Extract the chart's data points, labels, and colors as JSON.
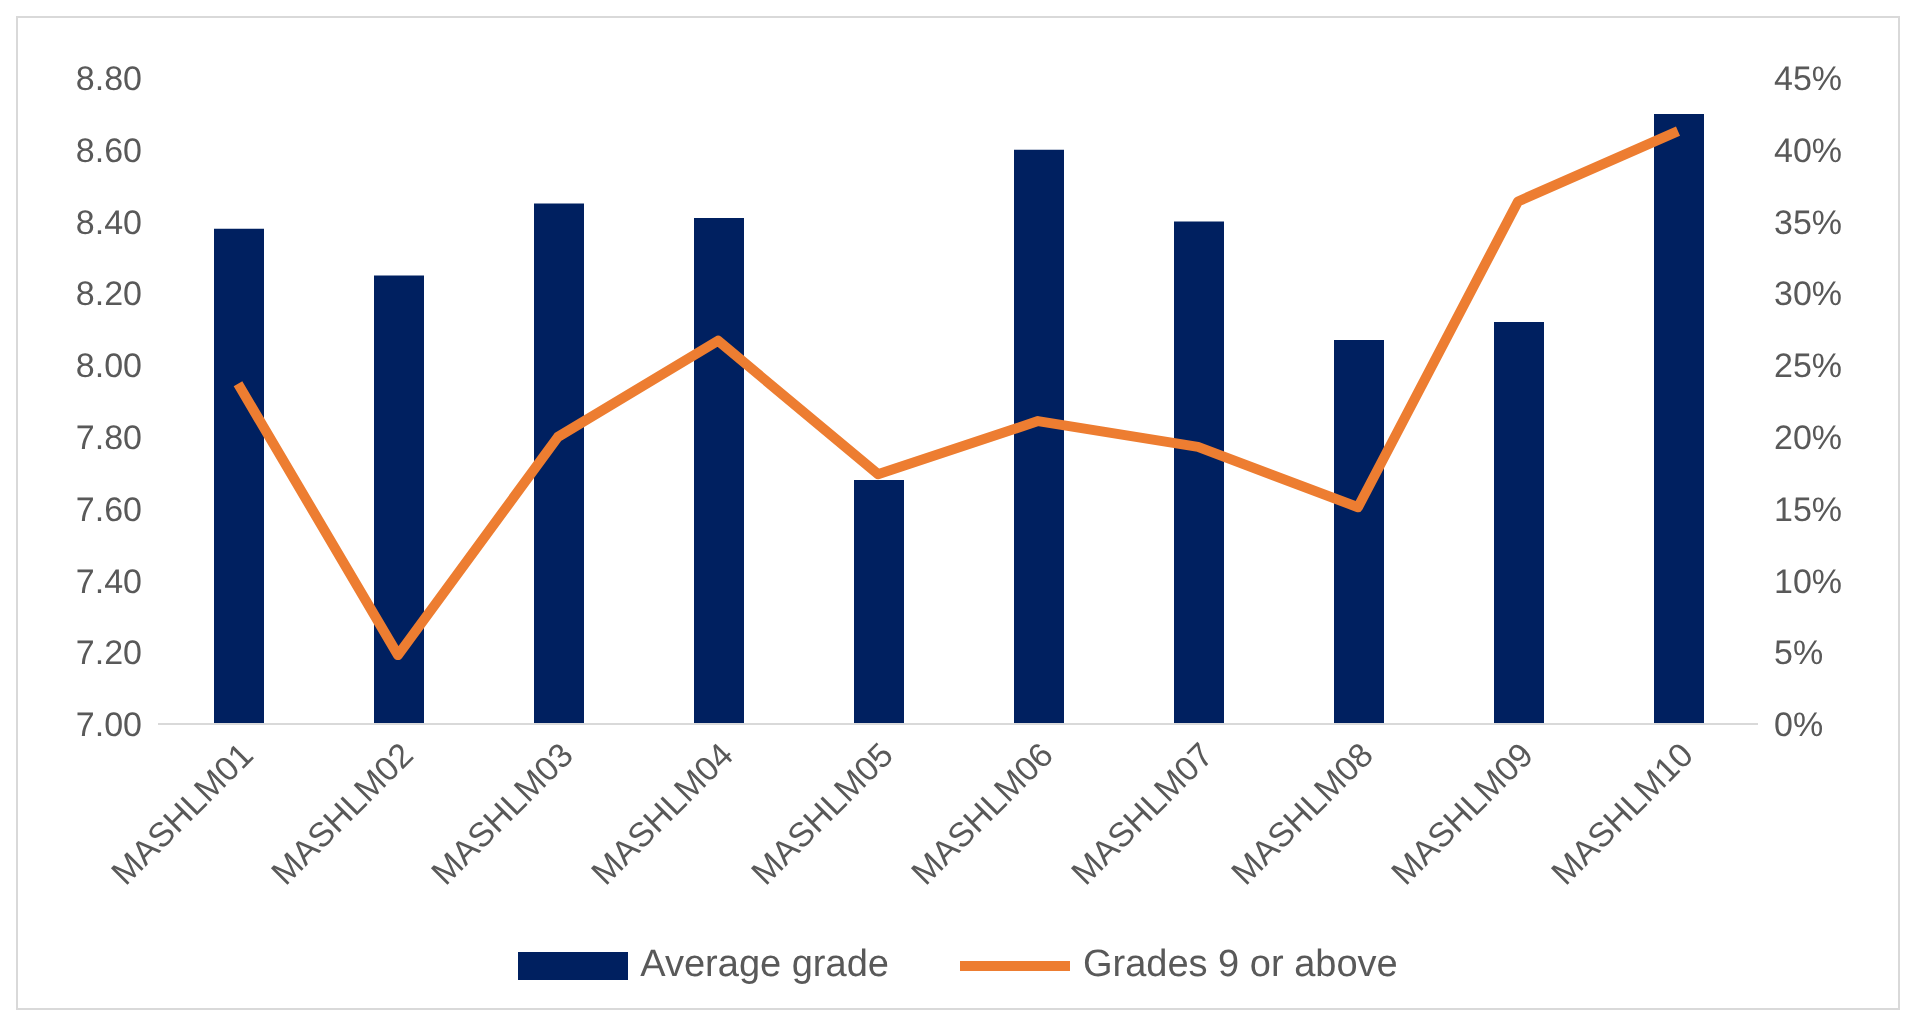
{
  "chart_data": {
    "type": "bar",
    "categories": [
      "MASHLM01",
      "MASHLM02",
      "MASHLM03",
      "MASHLM04",
      "MASHLM05",
      "MASHLM06",
      "MASHLM07",
      "MASHLM08",
      "MASHLM09",
      "MASHLM10"
    ],
    "series": [
      {
        "name": "Average grade",
        "color": "#002060",
        "values": [
          8.38,
          8.25,
          8.45,
          8.41,
          7.68,
          8.6,
          8.4,
          8.07,
          8.12,
          8.7
        ]
      },
      {
        "name": "Grades 9 or above",
        "type": "line",
        "axis": "y2",
        "color": "#ed7d31",
        "values": [
          23.7,
          4.8,
          20,
          26.7,
          17.4,
          21.1,
          19.3,
          15.1,
          36.4,
          41.3
        ]
      }
    ],
    "ylim": [
      7,
      8.8
    ],
    "yticks": [
      {
        "value": 7,
        "label": "7.00"
      },
      {
        "value": 7.2,
        "label": "7.20"
      },
      {
        "value": 7.4,
        "label": "7.40"
      },
      {
        "value": 7.6,
        "label": "7.60"
      },
      {
        "value": 7.8,
        "label": "7.80"
      },
      {
        "value": 8,
        "label": "8.00"
      },
      {
        "value": 8.2,
        "label": "8.20"
      },
      {
        "value": 8.4,
        "label": "8.40"
      },
      {
        "value": 8.6,
        "label": "8.60"
      },
      {
        "value": 8.8,
        "label": "8.80"
      }
    ],
    "y2lim": [
      0,
      45
    ],
    "y2ticks": [
      {
        "value": 0,
        "label": "0%"
      },
      {
        "value": 5,
        "label": "5%"
      },
      {
        "value": 10,
        "label": "10%"
      },
      {
        "value": 15,
        "label": "15%"
      },
      {
        "value": 20,
        "label": "20%"
      },
      {
        "value": 25,
        "label": "25%"
      },
      {
        "value": 30,
        "label": "30%"
      },
      {
        "value": 35,
        "label": "35%"
      },
      {
        "value": 40,
        "label": "40%"
      },
      {
        "value": 45,
        "label": "45%"
      }
    ],
    "grid": false,
    "legend": "bottom",
    "marker": "none"
  }
}
